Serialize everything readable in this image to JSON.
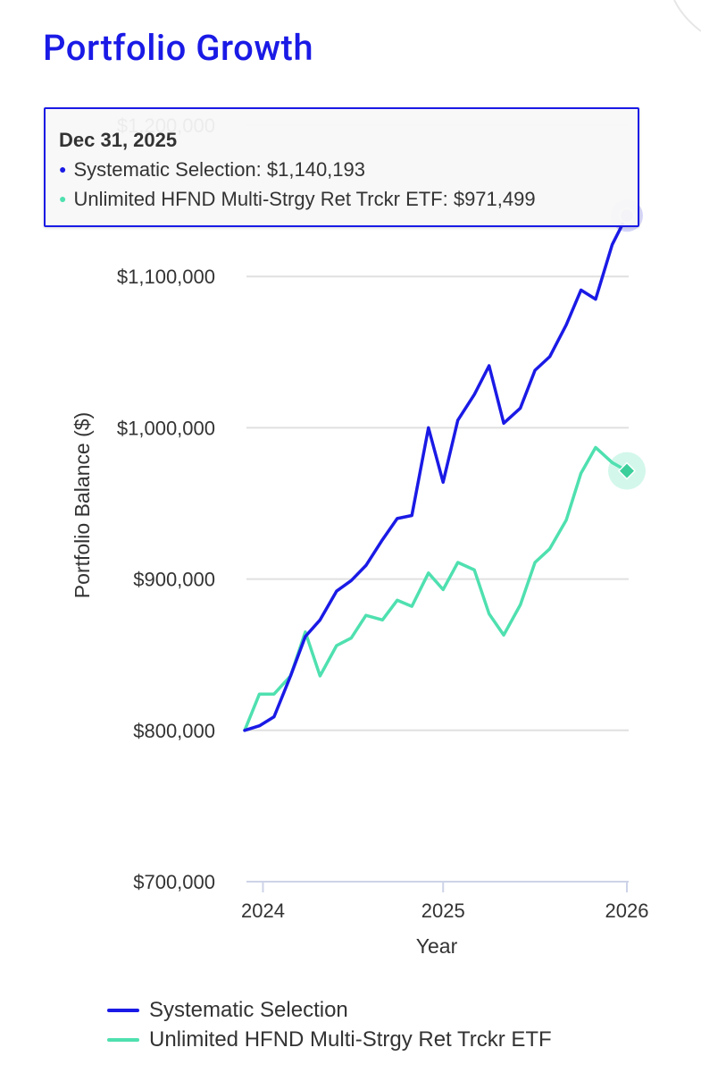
{
  "header": {
    "title": "Portfolio Growth"
  },
  "colors": {
    "systematic": "#1a1ae6",
    "hfnd": "#4fe0b0",
    "grid": "#e0e0e0",
    "axis": "#cdd3e8"
  },
  "tooltip": {
    "date": "Dec 31, 2025",
    "rows": [
      {
        "series": "Systematic Selection",
        "text": "Systematic Selection: $1,140,193"
      },
      {
        "series": "Unlimited HFND Multi-Strgy Ret Trckr ETF",
        "text": "Unlimited HFND Multi-Strgy Ret Trckr ETF: $971,499"
      }
    ]
  },
  "chart_data": {
    "type": "line",
    "xlabel": "Year",
    "ylabel": "Portfolio Balance ($)",
    "ylim": [
      700000,
      1200000
    ],
    "yticks": [
      700000,
      800000,
      900000,
      1000000,
      1100000,
      1200000
    ],
    "ytick_labels": [
      "$700,000",
      "$800,000",
      "$900,000",
      "$1,000,000",
      "$1,100,000",
      "$1,200,000"
    ],
    "xlim": [
      2023.92,
      2026.0
    ],
    "xticks": [
      2024,
      2025,
      2026
    ],
    "xtick_labels": [
      "2024",
      "2025",
      "2026"
    ],
    "x": [
      2023.92,
      2024.0,
      2024.08,
      2024.17,
      2024.25,
      2024.33,
      2024.42,
      2024.5,
      2024.58,
      2024.67,
      2024.75,
      2024.83,
      2024.92,
      2025.0,
      2025.08,
      2025.17,
      2025.25,
      2025.33,
      2025.42,
      2025.5,
      2025.58,
      2025.67,
      2025.75,
      2025.83,
      2025.92,
      2026.0
    ],
    "series": [
      {
        "name": "Systematic Selection",
        "values": [
          800000,
          803000,
          809000,
          836000,
          862000,
          873000,
          892000,
          899000,
          909000,
          926000,
          940000,
          942000,
          1000000,
          964000,
          1005000,
          1022000,
          1041000,
          1003000,
          1013000,
          1038000,
          1047000,
          1068000,
          1091000,
          1085000,
          1121000,
          1140193
        ]
      },
      {
        "name": "Unlimited HFND Multi-Strgy Ret Trckr ETF",
        "values": [
          800000,
          824000,
          824000,
          836000,
          865000,
          836000,
          856000,
          861000,
          876000,
          873000,
          886000,
          882000,
          904000,
          893000,
          911000,
          906000,
          877000,
          863000,
          883000,
          911000,
          920000,
          939000,
          970000,
          987000,
          977000,
          971499
        ]
      }
    ],
    "highlight_index": 25
  },
  "legend": {
    "items": [
      {
        "label": "Systematic Selection"
      },
      {
        "label": "Unlimited HFND Multi-Strgy Ret Trckr ETF"
      }
    ]
  }
}
